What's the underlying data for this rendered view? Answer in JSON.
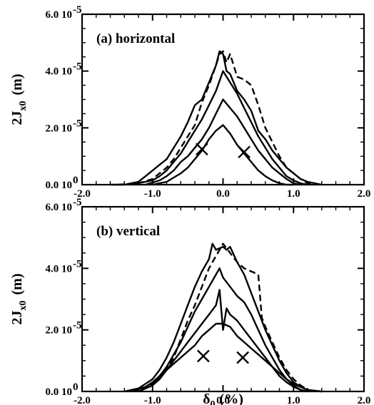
{
  "chart_data": [
    {
      "type": "line",
      "panel_label": "(a) horizontal",
      "xlabel": "",
      "ylabel_main": "2J",
      "ylabel_sub": "x0",
      "ylabel_unit": "(m)",
      "xlim": [
        -2.0,
        2.0
      ],
      "ylim": [
        0,
        6e-05
      ],
      "x_ticks": [
        {
          "value": -2.0,
          "label": "-2.0"
        },
        {
          "value": -1.0,
          "label": "-1.0"
        },
        {
          "value": 0.0,
          "label": "0.0"
        },
        {
          "value": 1.0,
          "label": "1.0"
        },
        {
          "value": 2.0,
          "label": "2.0"
        }
      ],
      "y_ticks": [
        {
          "value": 0,
          "mantissa": "0.0 10",
          "exponent": "0"
        },
        {
          "value": 2e-05,
          "mantissa": "2.0 10",
          "exponent": "-5"
        },
        {
          "value": 4e-05,
          "mantissa": "4.0 10",
          "exponent": "-5"
        },
        {
          "value": 6e-05,
          "mantissa": "6.0 10",
          "exponent": "-5"
        }
      ],
      "grid": false,
      "series": [
        {
          "style": "solid",
          "x": [
            -1.6,
            -1.4,
            -1.2,
            -1.1,
            -1.0,
            -0.9,
            -0.8,
            -0.7,
            -0.6,
            -0.5,
            -0.4,
            -0.3,
            -0.2,
            -0.1,
            -0.05,
            0.0,
            0.05,
            0.1,
            0.2,
            0.3,
            0.4,
            0.5,
            0.6,
            0.7,
            0.8,
            0.9,
            1.0,
            1.1,
            1.2,
            1.4
          ],
          "y": [
            0,
            0,
            1e-06,
            3e-06,
            5e-06,
            7e-06,
            9e-06,
            1.3e-05,
            1.7e-05,
            2.2e-05,
            2.8e-05,
            3e-05,
            3.6e-05,
            4.2e-05,
            4.7e-05,
            4.6e-05,
            4e-05,
            3.9e-05,
            3.3e-05,
            3e-05,
            2.6e-05,
            1.9e-05,
            1.6e-05,
            1.2e-05,
            9e-06,
            6e-06,
            4e-06,
            2e-06,
            1e-06,
            0
          ]
        },
        {
          "style": "dashed",
          "x": [
            -1.5,
            -1.2,
            -1.0,
            -0.9,
            -0.8,
            -0.7,
            -0.6,
            -0.5,
            -0.4,
            -0.3,
            -0.2,
            -0.1,
            -0.05,
            0.0,
            0.05,
            0.1,
            0.2,
            0.3,
            0.4,
            0.5,
            0.6,
            0.7,
            0.8,
            0.9,
            1.0,
            1.1,
            1.2,
            1.3
          ],
          "y": [
            0,
            5e-07,
            2e-06,
            4e-06,
            6e-06,
            9e-06,
            1.3e-05,
            1.7e-05,
            2.1e-05,
            2.9e-05,
            3.5e-05,
            4.2e-05,
            4.6e-05,
            4.7e-05,
            4.3e-05,
            4.6e-05,
            3.8e-05,
            3.7e-05,
            3.5e-05,
            2.8e-05,
            2e-05,
            1.5e-05,
            1e-05,
            6e-06,
            4e-06,
            2e-06,
            5e-07,
            0
          ]
        },
        {
          "style": "solid",
          "x": [
            -1.3,
            -1.0,
            -0.9,
            -0.8,
            -0.7,
            -0.6,
            -0.5,
            -0.4,
            -0.3,
            -0.2,
            -0.1,
            0.0,
            0.1,
            0.2,
            0.3,
            0.4,
            0.5,
            0.6,
            0.7,
            0.8,
            0.9,
            1.0,
            1.1,
            1.2
          ],
          "y": [
            0,
            1.5e-06,
            3e-06,
            5e-06,
            8e-06,
            1.1e-05,
            1.5e-05,
            1.9e-05,
            2.3e-05,
            2.8e-05,
            3.3e-05,
            4e-05,
            3.6e-05,
            3.2e-05,
            2.7e-05,
            2.2e-05,
            1.7e-05,
            1.3e-05,
            9e-06,
            6e-06,
            3e-06,
            1.5e-06,
            5e-07,
            0
          ]
        },
        {
          "style": "solid",
          "x": [
            -1.1,
            -0.9,
            -0.8,
            -0.7,
            -0.6,
            -0.5,
            -0.4,
            -0.3,
            -0.2,
            -0.1,
            0.0,
            0.1,
            0.2,
            0.3,
            0.4,
            0.5,
            0.6,
            0.7,
            0.8,
            0.9,
            1.0,
            1.1
          ],
          "y": [
            0,
            1.5e-06,
            3e-06,
            5e-06,
            8e-06,
            1e-05,
            1.3e-05,
            1.6e-05,
            2e-05,
            2.5e-05,
            3e-05,
            2.7e-05,
            2.4e-05,
            2e-05,
            1.6e-05,
            1.2e-05,
            9e-06,
            6e-06,
            4e-06,
            2e-06,
            5e-07,
            0
          ]
        },
        {
          "style": "solid",
          "x": [
            -1.0,
            -0.8,
            -0.7,
            -0.6,
            -0.5,
            -0.4,
            -0.3,
            -0.2,
            -0.1,
            0.0,
            0.1,
            0.2,
            0.3,
            0.4,
            0.5,
            0.6,
            0.7,
            0.8,
            0.9,
            1.0
          ],
          "y": [
            0,
            1e-06,
            2.5e-06,
            4e-06,
            6e-06,
            9e-06,
            1.2e-05,
            1.6e-05,
            1.9e-05,
            2.1e-05,
            1.8e-05,
            1.4e-05,
            1.1e-05,
            8e-06,
            5e-06,
            3e-06,
            1.5e-06,
            5e-07,
            0,
            0
          ]
        }
      ],
      "markers": [
        {
          "symbol": "x",
          "x": -0.3,
          "y": 1.25e-05
        },
        {
          "symbol": "x",
          "x": 0.3,
          "y": 1.15e-05
        }
      ]
    },
    {
      "type": "line",
      "panel_label": "(b) vertical",
      "xlabel_main": "δ",
      "xlabel_sub": "0",
      "xlabel_unit": "(%)",
      "ylabel_main": "2J",
      "ylabel_sub": "x0",
      "ylabel_unit": "(m)",
      "xlim": [
        -2.0,
        2.0
      ],
      "ylim": [
        0,
        6e-05
      ],
      "x_ticks": [
        {
          "value": -2.0,
          "label": "-2.0"
        },
        {
          "value": -1.0,
          "label": "-1.0"
        },
        {
          "value": 0.0,
          "label": "0.0"
        },
        {
          "value": 1.0,
          "label": "1.0"
        },
        {
          "value": 2.0,
          "label": "2.0"
        }
      ],
      "y_ticks": [
        {
          "value": 0,
          "mantissa": "0.0 10",
          "exponent": "0"
        },
        {
          "value": 2e-05,
          "mantissa": "2.0 10",
          "exponent": "-5"
        },
        {
          "value": 4e-05,
          "mantissa": "4.0 10",
          "exponent": "-5"
        },
        {
          "value": 6e-05,
          "mantissa": "6.0 10",
          "exponent": "-5"
        }
      ],
      "grid": false,
      "series": [
        {
          "style": "solid",
          "x": [
            -1.4,
            -1.2,
            -1.0,
            -0.9,
            -0.8,
            -0.7,
            -0.6,
            -0.5,
            -0.4,
            -0.3,
            -0.2,
            -0.15,
            -0.1,
            0.0,
            0.05,
            0.1,
            0.2,
            0.3,
            0.4,
            0.5,
            0.6,
            0.7,
            0.8,
            0.9,
            1.0,
            1.1,
            1.2,
            1.4
          ],
          "y": [
            0,
            1e-06,
            4e-06,
            7e-06,
            1.1e-05,
            1.6e-05,
            2.2e-05,
            2.8e-05,
            3.4e-05,
            3.9e-05,
            4.3e-05,
            4.8e-05,
            4.6e-05,
            4.7e-05,
            4.6e-05,
            4.7e-05,
            4.2e-05,
            3.8e-05,
            3.2e-05,
            2.6e-05,
            2e-05,
            1.5e-05,
            1e-05,
            6e-06,
            3e-06,
            1.5e-06,
            5e-07,
            0
          ]
        },
        {
          "style": "dashed",
          "x": [
            -1.3,
            -1.1,
            -0.9,
            -0.8,
            -0.7,
            -0.6,
            -0.5,
            -0.4,
            -0.3,
            -0.2,
            -0.1,
            0.0,
            0.1,
            0.2,
            0.3,
            0.4,
            0.5,
            0.55,
            0.6,
            0.7,
            0.8,
            0.9,
            1.0,
            1.1,
            1.2,
            1.3
          ],
          "y": [
            0,
            1e-06,
            4e-06,
            7e-06,
            1.1e-05,
            1.7e-05,
            2.3e-05,
            2.8e-05,
            3.4e-05,
            4e-05,
            4.4e-05,
            4.8e-05,
            4.5e-05,
            4.2e-05,
            4e-05,
            3.9e-05,
            3.8e-05,
            2.4e-05,
            2.1e-05,
            1.6e-05,
            1.1e-05,
            7e-06,
            4e-06,
            2e-06,
            5e-07,
            0
          ]
        },
        {
          "style": "solid",
          "x": [
            -1.2,
            -1.0,
            -0.9,
            -0.8,
            -0.7,
            -0.6,
            -0.5,
            -0.4,
            -0.3,
            -0.2,
            -0.1,
            -0.05,
            0.0,
            0.1,
            0.2,
            0.3,
            0.4,
            0.5,
            0.6,
            0.7,
            0.8,
            0.9,
            1.0,
            1.1,
            1.2
          ],
          "y": [
            0,
            2e-06,
            5e-06,
            8e-06,
            1.2e-05,
            1.6e-05,
            2.1e-05,
            2.6e-05,
            3e-05,
            3.4e-05,
            3.8e-05,
            4e-05,
            3.7e-05,
            3.4e-05,
            3.1e-05,
            2.9e-05,
            2.5e-05,
            2e-05,
            1.5e-05,
            1.1e-05,
            7e-06,
            4e-06,
            2e-06,
            5e-07,
            0
          ]
        },
        {
          "style": "solid",
          "x": [
            -1.2,
            -1.0,
            -0.9,
            -0.8,
            -0.7,
            -0.6,
            -0.5,
            -0.4,
            -0.3,
            -0.2,
            -0.1,
            -0.05,
            0.0,
            0.05,
            0.1,
            0.2,
            0.3,
            0.4,
            0.5,
            0.6,
            0.7,
            0.8,
            0.9,
            1.0,
            1.1,
            1.2
          ],
          "y": [
            0,
            2e-06,
            4e-06,
            7e-06,
            1e-05,
            1.3e-05,
            1.6e-05,
            1.9e-05,
            2.2e-05,
            2.5e-05,
            2.8e-05,
            3.3e-05,
            2e-05,
            2.7e-05,
            2.5e-05,
            2.3e-05,
            2e-05,
            1.7e-05,
            1.4e-05,
            1.1e-05,
            8e-06,
            5e-06,
            3e-06,
            1.5e-06,
            5e-07,
            0
          ]
        },
        {
          "style": "solid",
          "x": [
            -1.3,
            -1.1,
            -1.0,
            -0.9,
            -0.8,
            -0.7,
            -0.6,
            -0.5,
            -0.4,
            -0.3,
            -0.2,
            -0.1,
            0.0,
            0.1,
            0.2,
            0.3,
            0.4,
            0.5,
            0.6,
            0.7,
            0.8,
            0.9,
            1.0,
            1.1,
            1.2,
            1.3,
            1.4
          ],
          "y": [
            0,
            1.5e-06,
            3e-06,
            5e-06,
            7e-06,
            9e-06,
            1.1e-05,
            1.3e-05,
            1.5e-05,
            1.8e-05,
            2e-05,
            2.2e-05,
            2.2e-05,
            2.1e-05,
            1.8e-05,
            1.6e-05,
            1.4e-05,
            1.2e-05,
            1e-05,
            8e-06,
            6e-06,
            4e-06,
            2.5e-06,
            1.5e-06,
            5e-07,
            2e-07,
            0
          ]
        }
      ],
      "markers": [
        {
          "symbol": "x",
          "x": -0.28,
          "y": 1.15e-05
        },
        {
          "symbol": "x",
          "x": 0.28,
          "y": 1.1e-05
        }
      ]
    }
  ]
}
